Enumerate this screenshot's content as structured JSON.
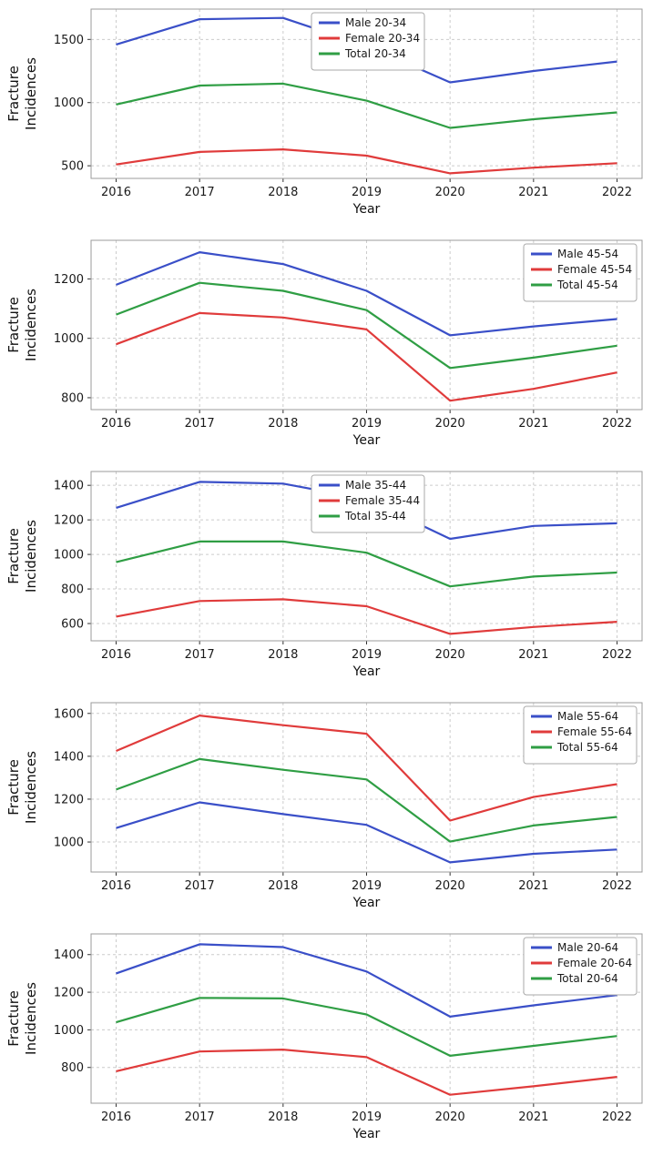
{
  "figure": {
    "background": "#ffffff",
    "description": "Five stacked line charts of fracture incidences by year for different age groups"
  },
  "chart_data": [
    {
      "type": "line",
      "group": "20-34",
      "xlabel": "Year",
      "ylabel": "Fracture Incidences",
      "x": [
        2016,
        2017,
        2018,
        2019,
        2020,
        2021,
        2022
      ],
      "xtick_labels": [
        "2016",
        "2017",
        "2018",
        "2019",
        "2020",
        "2021",
        "2022"
      ],
      "yticks": [
        500,
        1000,
        1500
      ],
      "ylim": [
        400,
        1740
      ],
      "grid": true,
      "grid_style": "dashed",
      "legend_pos": "upper-center",
      "series": [
        {
          "name": "Male 20-34",
          "color": "#3a4fc8",
          "values": [
            1460,
            1660,
            1670,
            1450,
            1160,
            1250,
            1325
          ]
        },
        {
          "name": "Female 20-34",
          "color": "#e03b3b",
          "values": [
            510,
            610,
            630,
            580,
            440,
            485,
            520
          ]
        },
        {
          "name": "Total 20-34",
          "color": "#2f9e44",
          "values": [
            985,
            1135,
            1150,
            1015,
            800,
            868,
            922
          ]
        }
      ]
    },
    {
      "type": "line",
      "group": "45-54",
      "xlabel": "Year",
      "ylabel": "Fracture Incidences",
      "x": [
        2016,
        2017,
        2018,
        2019,
        2020,
        2021,
        2022
      ],
      "xtick_labels": [
        "2016",
        "2017",
        "2018",
        "2019",
        "2020",
        "2021",
        "2022"
      ],
      "yticks": [
        800,
        1000,
        1200
      ],
      "ylim": [
        760,
        1330
      ],
      "grid": true,
      "grid_style": "dashed",
      "legend_pos": "upper-right",
      "series": [
        {
          "name": "Male 45-54",
          "color": "#3a4fc8",
          "values": [
            1180,
            1290,
            1250,
            1160,
            1010,
            1040,
            1065
          ]
        },
        {
          "name": "Female 45-54",
          "color": "#e03b3b",
          "values": [
            980,
            1085,
            1070,
            1030,
            790,
            830,
            885
          ]
        },
        {
          "name": "Total 45-54",
          "color": "#2f9e44",
          "values": [
            1080,
            1187,
            1160,
            1095,
            900,
            935,
            975
          ]
        }
      ]
    },
    {
      "type": "line",
      "group": "35-44",
      "xlabel": "Year",
      "ylabel": "Fracture Incidences",
      "x": [
        2016,
        2017,
        2018,
        2019,
        2020,
        2021,
        2022
      ],
      "xtick_labels": [
        "2016",
        "2017",
        "2018",
        "2019",
        "2020",
        "2021",
        "2022"
      ],
      "yticks": [
        600,
        800,
        1000,
        1200,
        1400
      ],
      "ylim": [
        500,
        1480
      ],
      "grid": true,
      "grid_style": "dashed",
      "legend_pos": "upper-center",
      "series": [
        {
          "name": "Male 35-44",
          "color": "#3a4fc8",
          "values": [
            1270,
            1420,
            1410,
            1320,
            1090,
            1165,
            1180
          ]
        },
        {
          "name": "Female 35-44",
          "color": "#e03b3b",
          "values": [
            640,
            730,
            740,
            700,
            540,
            580,
            610
          ]
        },
        {
          "name": "Total 35-44",
          "color": "#2f9e44",
          "values": [
            955,
            1075,
            1075,
            1010,
            815,
            872,
            895
          ]
        }
      ]
    },
    {
      "type": "line",
      "group": "55-64",
      "xlabel": "Year",
      "ylabel": "Fracture Incidences",
      "x": [
        2016,
        2017,
        2018,
        2019,
        2020,
        2021,
        2022
      ],
      "xtick_labels": [
        "2016",
        "2017",
        "2018",
        "2019",
        "2020",
        "2021",
        "2022"
      ],
      "yticks": [
        1000,
        1200,
        1400,
        1600
      ],
      "ylim": [
        860,
        1650
      ],
      "grid": true,
      "grid_style": "dashed",
      "legend_pos": "upper-right",
      "series": [
        {
          "name": "Male 55-64",
          "color": "#3a4fc8",
          "values": [
            1065,
            1185,
            1130,
            1080,
            905,
            945,
            965
          ]
        },
        {
          "name": "Female 55-64",
          "color": "#e03b3b",
          "values": [
            1425,
            1590,
            1545,
            1505,
            1100,
            1210,
            1270
          ]
        },
        {
          "name": "Total 55-64",
          "color": "#2f9e44",
          "values": [
            1245,
            1387,
            1337,
            1292,
            1002,
            1077,
            1117
          ]
        }
      ]
    },
    {
      "type": "line",
      "group": "20-64",
      "xlabel": "Year",
      "ylabel": "Fracture Incidences",
      "x": [
        2016,
        2017,
        2018,
        2019,
        2020,
        2021,
        2022
      ],
      "xtick_labels": [
        "2016",
        "2017",
        "2018",
        "2019",
        "2020",
        "2021",
        "2022"
      ],
      "yticks": [
        800,
        1000,
        1200,
        1400
      ],
      "ylim": [
        610,
        1510
      ],
      "grid": true,
      "grid_style": "dashed",
      "legend_pos": "upper-right",
      "series": [
        {
          "name": "Male 20-64",
          "color": "#3a4fc8",
          "values": [
            1300,
            1455,
            1440,
            1310,
            1070,
            1130,
            1185
          ]
        },
        {
          "name": "Female 20-64",
          "color": "#e03b3b",
          "values": [
            780,
            885,
            895,
            855,
            655,
            700,
            750
          ]
        },
        {
          "name": "Total 20-64",
          "color": "#2f9e44",
          "values": [
            1040,
            1170,
            1167,
            1082,
            862,
            915,
            967
          ]
        }
      ]
    }
  ]
}
